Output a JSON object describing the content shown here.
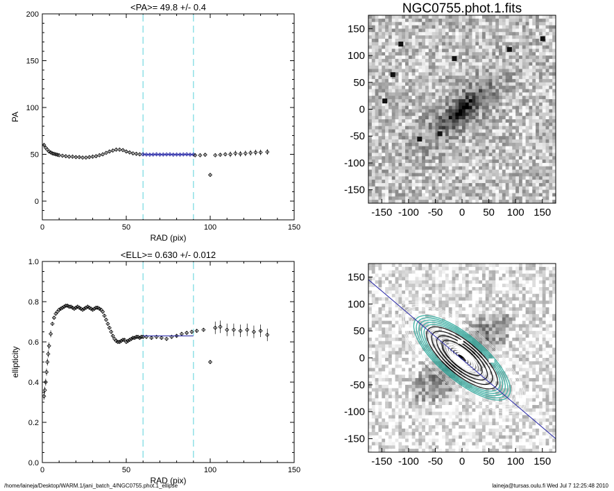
{
  "chart_data": [
    {
      "id": "pa",
      "type": "scatter",
      "title": "<PA>=  49.8 +/-   0.4",
      "xlabel": "RAD (pix)",
      "ylabel": "PA",
      "xlim": [
        0,
        150
      ],
      "ylim": [
        -20,
        200
      ],
      "xticks": [
        "0",
        "50",
        "100",
        "150"
      ],
      "yticks": [
        "0",
        "50",
        "100",
        "150",
        "200"
      ],
      "vlines": [
        60,
        90
      ],
      "fit_range": [
        60,
        90
      ],
      "fit_value": 49.8,
      "series": [
        {
          "label_x": [
            1,
            2,
            3,
            4,
            5,
            6,
            7,
            8,
            9,
            10,
            12,
            14,
            16,
            18,
            20,
            22,
            24,
            26,
            28,
            30,
            32,
            34,
            36,
            38,
            40,
            42,
            44,
            46,
            48,
            50,
            52,
            54,
            56,
            58,
            60
          ],
          "y": [
            60,
            57,
            55,
            53,
            52,
            51,
            50.5,
            50,
            49.5,
            49,
            48.5,
            48,
            47.5,
            47.5,
            47,
            47,
            46.5,
            46.5,
            47,
            47.5,
            48,
            49,
            50,
            51.5,
            53,
            54,
            55,
            55,
            54.5,
            53,
            52,
            51,
            50.5,
            50,
            50
          ]
        },
        {
          "x": [
            60,
            62,
            64,
            66,
            68,
            70,
            72,
            74,
            76,
            78,
            80,
            82,
            84,
            86,
            88,
            90
          ],
          "y": [
            50,
            49.8,
            49.6,
            49.8,
            50,
            49.7,
            49.8,
            49.9,
            50,
            49.6,
            49.8,
            49.7,
            49.9,
            50,
            49.7,
            49.8
          ]
        },
        {
          "x": [
            91,
            94,
            97,
            100,
            103,
            106,
            109,
            112,
            115,
            118,
            121,
            124,
            127,
            130,
            134
          ],
          "y": [
            49,
            49,
            49.5,
            28,
            49,
            49.5,
            50,
            50,
            51,
            50.5,
            51,
            51.5,
            52,
            52,
            52.5
          ]
        }
      ]
    },
    {
      "id": "ell",
      "type": "scatter",
      "title": "<ELL>= 0.630 +/-  0.012",
      "xlabel": "RAD (pix)",
      "ylabel": "ellipticity",
      "xlim": [
        0,
        150
      ],
      "ylim": [
        0,
        1
      ],
      "xticks": [
        "0",
        "50",
        "100",
        "150"
      ],
      "yticks": [
        "0.0",
        "0.2",
        "0.4",
        "0.6",
        "0.8",
        "1.0"
      ],
      "vlines": [
        60,
        90
      ],
      "fit_range": [
        60,
        90
      ],
      "fit_value": 0.63,
      "series": [
        {
          "x": [
            1,
            1.5,
            2,
            2.5,
            3,
            3.5,
            4,
            5,
            6,
            7,
            8,
            9,
            10,
            11,
            12,
            13,
            14,
            15,
            16,
            17,
            18,
            19,
            20,
            21,
            22,
            23,
            24,
            25,
            26,
            27,
            28,
            29,
            30,
            31,
            32,
            33,
            34,
            35,
            36,
            37,
            38,
            39,
            40,
            41,
            42,
            43,
            44,
            45,
            46,
            47,
            48,
            49,
            50,
            51,
            52,
            53,
            54,
            55,
            56,
            57,
            58,
            59,
            60
          ],
          "y": [
            0.33,
            0.36,
            0.4,
            0.45,
            0.5,
            0.54,
            0.58,
            0.64,
            0.69,
            0.72,
            0.74,
            0.75,
            0.76,
            0.765,
            0.77,
            0.775,
            0.78,
            0.78,
            0.775,
            0.775,
            0.77,
            0.765,
            0.77,
            0.775,
            0.77,
            0.765,
            0.76,
            0.765,
            0.77,
            0.775,
            0.77,
            0.765,
            0.76,
            0.765,
            0.77,
            0.77,
            0.765,
            0.76,
            0.75,
            0.73,
            0.71,
            0.69,
            0.67,
            0.65,
            0.63,
            0.615,
            0.605,
            0.6,
            0.6,
            0.605,
            0.61,
            0.61,
            0.6,
            0.605,
            0.61,
            0.615,
            0.62,
            0.62,
            0.625,
            0.625,
            0.62,
            0.625,
            0.625
          ]
        },
        {
          "x": [
            62,
            65,
            68,
            71,
            74,
            77,
            80,
            83,
            86,
            89
          ],
          "y": [
            0.625,
            0.62,
            0.625,
            0.62,
            0.615,
            0.625,
            0.63,
            0.64,
            0.645,
            0.65
          ]
        },
        {
          "x": [
            92,
            96,
            100,
            103,
            106,
            110,
            114,
            118,
            122,
            126,
            130,
            134
          ],
          "y": [
            0.655,
            0.66,
            0.5,
            0.67,
            0.675,
            0.66,
            0.66,
            0.655,
            0.66,
            0.65,
            0.655,
            0.635
          ]
        }
      ]
    },
    {
      "id": "image",
      "type": "heatmap",
      "title": "NGC0755.phot.1.fits",
      "xlim": [
        -175,
        175
      ],
      "ylim": [
        -175,
        175
      ],
      "xticks": [
        "-150",
        "-100",
        "-50",
        "0",
        "50",
        "100",
        "150"
      ],
      "yticks": [
        "-150",
        "-100",
        "-50",
        "0",
        "50",
        "100",
        "150"
      ],
      "galaxy": {
        "pa_deg": 49.8,
        "ell": 0.63
      }
    },
    {
      "id": "contours",
      "type": "heatmap",
      "title": "",
      "xlim": [
        -175,
        175
      ],
      "ylim": [
        -175,
        175
      ],
      "xticks": [
        "-150",
        "-100",
        "-50",
        "0",
        "50",
        "100",
        "150"
      ],
      "yticks": [
        "-150",
        "-100",
        "-50",
        "0",
        "50",
        "100",
        "150"
      ],
      "major_axis_pa_deg": 49.8
    }
  ],
  "footer": {
    "left": "/home/laineja/Desktop/WARM.1/jani_batch_4/NGC0755.phot.1_ellipse",
    "right": "laineja@tursas.oulu.fi  Wed Jul  7 12:25:48 2010"
  },
  "colors": {
    "dashed_line": "#8fe0e6",
    "fit_line": "#2a2aa8",
    "point": "#000000",
    "contour_teal": "#46b3a8",
    "contour_white": "#ffffff"
  }
}
